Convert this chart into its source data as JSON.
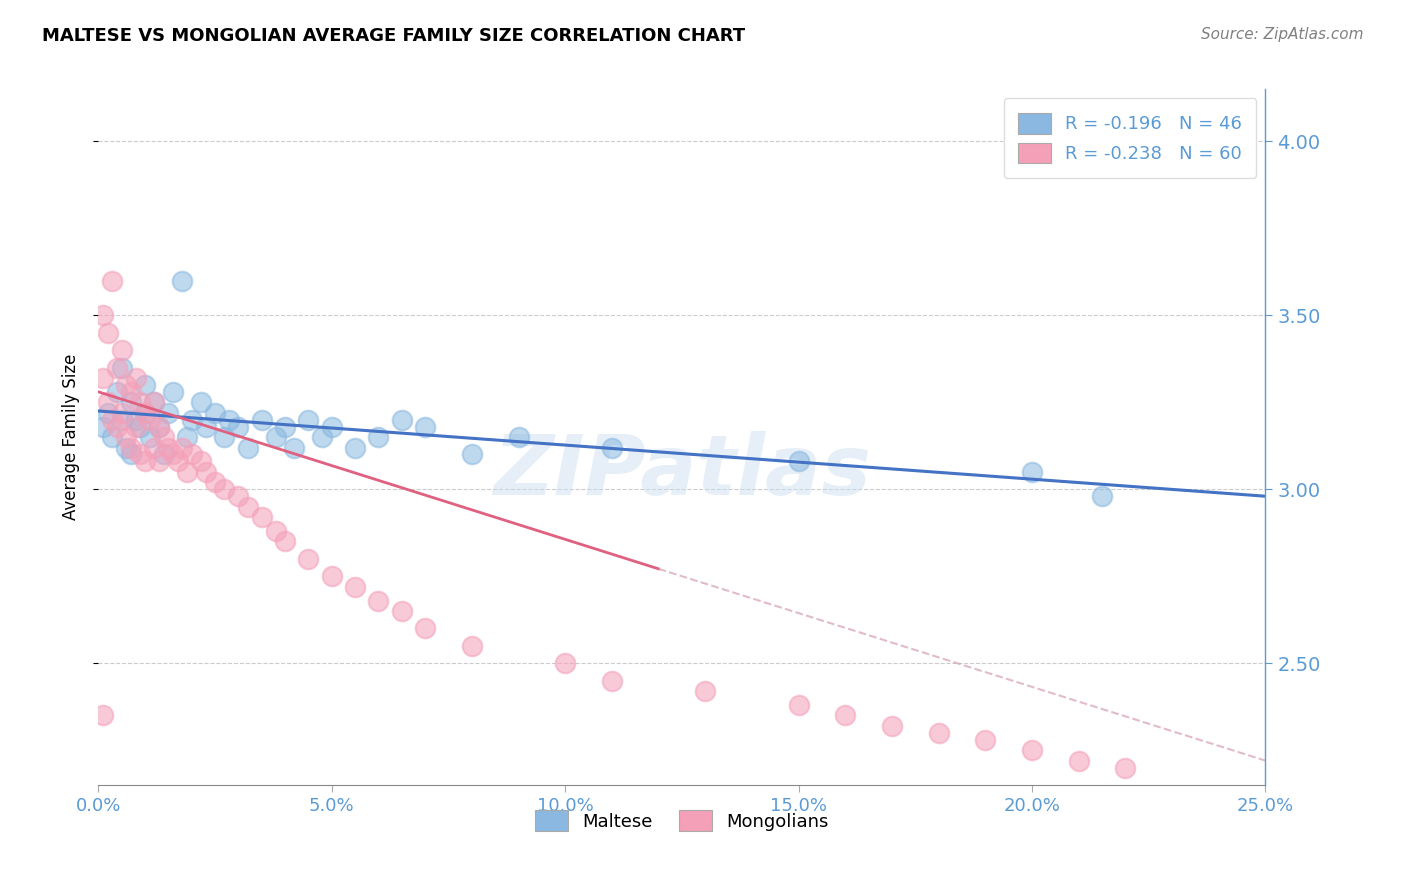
{
  "title": "MALTESE VS MONGOLIAN AVERAGE FAMILY SIZE CORRELATION CHART",
  "source": "Source: ZipAtlas.com",
  "ylabel": "Average Family Size",
  "xlim": [
    0.0,
    0.25
  ],
  "ylim": [
    2.15,
    4.15
  ],
  "yticks": [
    2.5,
    3.0,
    3.5,
    4.0
  ],
  "xticks": [
    0.0,
    0.05,
    0.1,
    0.15,
    0.2,
    0.25
  ],
  "xticklabels": [
    "0.0%",
    "5.0%",
    "10.0%",
    "15.0%",
    "20.0%",
    "25.0%"
  ],
  "maltese_color": "#8ab8e0",
  "mongolian_color": "#f4a0b8",
  "maltese_line_color": "#4472c4",
  "mongolian_line_color": "#e06080",
  "R_maltese": "-0.196",
  "N_maltese": "46",
  "R_mongolian": "-0.238",
  "N_mongolian": "60",
  "watermark": "ZIPatlas",
  "axis_color": "#5b9bd5",
  "grid_color": "#cccccc",
  "maltese_x": [
    0.001,
    0.002,
    0.003,
    0.004,
    0.005,
    0.005,
    0.006,
    0.007,
    0.007,
    0.008,
    0.009,
    0.01,
    0.01,
    0.011,
    0.012,
    0.013,
    0.014,
    0.015,
    0.016,
    0.018,
    0.019,
    0.02,
    0.022,
    0.023,
    0.025,
    0.027,
    0.028,
    0.03,
    0.032,
    0.035,
    0.038,
    0.04,
    0.042,
    0.045,
    0.048,
    0.05,
    0.055,
    0.06,
    0.065,
    0.07,
    0.08,
    0.09,
    0.11,
    0.15,
    0.2,
    0.215
  ],
  "maltese_y": [
    3.18,
    3.22,
    3.15,
    3.28,
    3.2,
    3.35,
    3.12,
    3.25,
    3.1,
    3.2,
    3.18,
    3.22,
    3.3,
    3.15,
    3.25,
    3.18,
    3.1,
    3.22,
    3.28,
    3.6,
    3.15,
    3.2,
    3.25,
    3.18,
    3.22,
    3.15,
    3.2,
    3.18,
    3.12,
    3.2,
    3.15,
    3.18,
    3.12,
    3.2,
    3.15,
    3.18,
    3.12,
    3.15,
    3.2,
    3.18,
    3.1,
    3.15,
    3.12,
    3.08,
    3.05,
    2.98
  ],
  "mongolian_x": [
    0.001,
    0.001,
    0.002,
    0.002,
    0.003,
    0.003,
    0.004,
    0.004,
    0.005,
    0.005,
    0.006,
    0.006,
    0.007,
    0.007,
    0.008,
    0.008,
    0.009,
    0.009,
    0.01,
    0.01,
    0.011,
    0.012,
    0.012,
    0.013,
    0.013,
    0.014,
    0.015,
    0.016,
    0.017,
    0.018,
    0.019,
    0.02,
    0.022,
    0.023,
    0.025,
    0.027,
    0.03,
    0.032,
    0.035,
    0.038,
    0.04,
    0.045,
    0.05,
    0.055,
    0.06,
    0.065,
    0.07,
    0.08,
    0.1,
    0.11,
    0.13,
    0.15,
    0.16,
    0.17,
    0.18,
    0.19,
    0.2,
    0.21,
    0.22,
    0.001
  ],
  "mongolian_y": [
    3.5,
    3.32,
    3.45,
    3.25,
    3.6,
    3.2,
    3.35,
    3.18,
    3.4,
    3.22,
    3.3,
    3.15,
    3.28,
    3.12,
    3.32,
    3.18,
    3.25,
    3.1,
    3.22,
    3.08,
    3.2,
    3.25,
    3.12,
    3.18,
    3.08,
    3.15,
    3.12,
    3.1,
    3.08,
    3.12,
    3.05,
    3.1,
    3.08,
    3.05,
    3.02,
    3.0,
    2.98,
    2.95,
    2.92,
    2.88,
    2.85,
    2.8,
    2.75,
    2.72,
    2.68,
    2.65,
    2.6,
    2.55,
    2.5,
    2.45,
    2.42,
    2.38,
    2.35,
    2.32,
    2.3,
    2.28,
    2.25,
    2.22,
    2.2,
    2.35
  ],
  "maltese_trend": [
    3.225,
    2.98
  ],
  "mongolian_trend_solid_end": 0.12,
  "mongolian_trend": [
    3.28,
    2.22
  ]
}
